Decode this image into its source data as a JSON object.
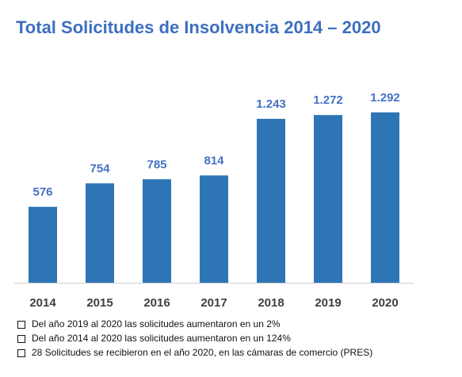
{
  "chart_data": {
    "type": "bar",
    "title": "Total Solicitudes de Insolvencia 2014 – 2020",
    "categories": [
      "2014",
      "2015",
      "2016",
      "2017",
      "2018",
      "2019",
      "2020"
    ],
    "values": [
      576,
      754,
      785,
      814,
      1243,
      1272,
      1292
    ],
    "value_labels": [
      "576",
      "754",
      "785",
      "814",
      "1.243",
      "1.272",
      "1.292"
    ],
    "color": "#2e75b6",
    "notes": [
      "Del año 2019 al 2020 las solicitudes aumentaron en un 2%",
      "Del año 2014 al 2020 las solicitudes aumentaron en un 124%",
      "28 Solicitudes se recibieron en el año 2020, en las cámaras de comercio (PRES)"
    ]
  }
}
